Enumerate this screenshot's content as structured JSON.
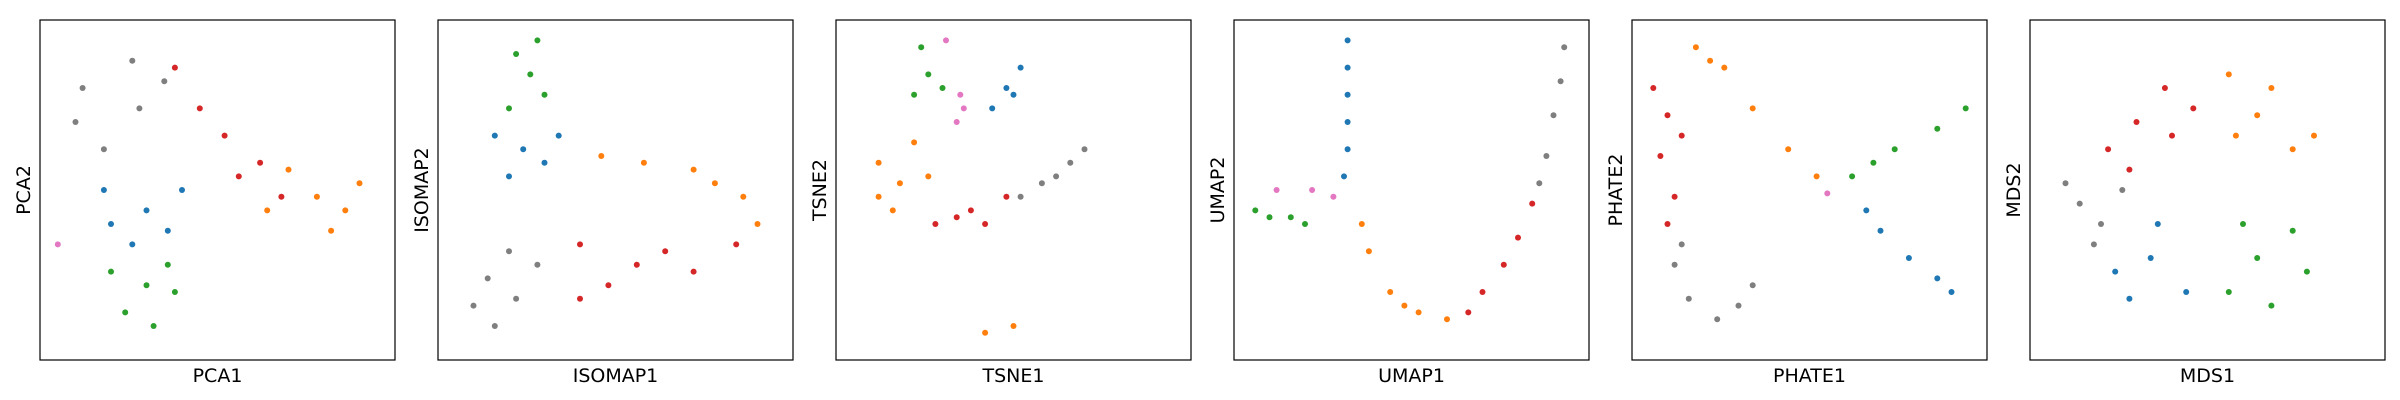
{
  "chart_data": [
    {
      "type": "scatter",
      "xlabel": "PCA1",
      "ylabel": "PCA2",
      "xlim": [
        0,
        100
      ],
      "ylim": [
        0,
        100
      ],
      "grid": false,
      "series": [
        {
          "color": "#7f7f7f",
          "points": [
            [
              28,
              74
            ],
            [
              12,
              80
            ],
            [
              18,
              62
            ],
            [
              35,
              82
            ],
            [
              26,
              88
            ],
            [
              10,
              70
            ]
          ]
        },
        {
          "color": "#d62728",
          "points": [
            [
              52,
              66
            ],
            [
              45,
              74
            ],
            [
              62,
              58
            ],
            [
              68,
              48
            ],
            [
              38,
              86
            ],
            [
              56,
              54
            ]
          ]
        },
        {
          "color": "#ff7f0e",
          "points": [
            [
              78,
              48
            ],
            [
              70,
              56
            ],
            [
              86,
              44
            ],
            [
              90,
              52
            ],
            [
              64,
              44
            ],
            [
              82,
              38
            ]
          ]
        },
        {
          "color": "#1f77b4",
          "points": [
            [
              30,
              44
            ],
            [
              20,
              40
            ],
            [
              40,
              50
            ],
            [
              26,
              34
            ],
            [
              36,
              38
            ],
            [
              18,
              50
            ]
          ]
        },
        {
          "color": "#2ca02c",
          "points": [
            [
              30,
              22
            ],
            [
              24,
              14
            ],
            [
              36,
              28
            ],
            [
              20,
              26
            ],
            [
              32,
              10
            ],
            [
              38,
              20
            ]
          ]
        },
        {
          "color": "#e377c2",
          "points": [
            [
              5,
              34
            ]
          ]
        }
      ]
    },
    {
      "type": "scatter",
      "xlabel": "ISOMAP1",
      "ylabel": "ISOMAP2",
      "xlim": [
        0,
        100
      ],
      "ylim": [
        0,
        100
      ],
      "grid": false,
      "series": [
        {
          "color": "#2ca02c",
          "points": [
            [
              26,
              84
            ],
            [
              22,
              90
            ],
            [
              30,
              78
            ],
            [
              20,
              74
            ],
            [
              28,
              94
            ]
          ]
        },
        {
          "color": "#1f77b4",
          "points": [
            [
              24,
              62
            ],
            [
              16,
              66
            ],
            [
              30,
              58
            ],
            [
              20,
              54
            ],
            [
              34,
              66
            ]
          ]
        },
        {
          "color": "#ff7f0e",
          "points": [
            [
              58,
              58
            ],
            [
              72,
              56
            ],
            [
              86,
              48
            ],
            [
              90,
              40
            ],
            [
              46,
              60
            ],
            [
              78,
              52
            ]
          ]
        },
        {
          "color": "#d62728",
          "points": [
            [
              40,
              34
            ],
            [
              56,
              28
            ],
            [
              72,
              26
            ],
            [
              84,
              34
            ],
            [
              48,
              22
            ],
            [
              64,
              32
            ],
            [
              40,
              18
            ]
          ]
        },
        {
          "color": "#7f7f7f",
          "points": [
            [
              14,
              24
            ],
            [
              22,
              18
            ],
            [
              28,
              28
            ],
            [
              10,
              16
            ],
            [
              20,
              32
            ],
            [
              16,
              10
            ]
          ]
        }
      ]
    },
    {
      "type": "scatter",
      "xlabel": "TSNE1",
      "ylabel": "TSNE2",
      "xlim": [
        0,
        100
      ],
      "ylim": [
        0,
        100
      ],
      "grid": false,
      "series": [
        {
          "color": "#2ca02c",
          "points": [
            [
              26,
              84
            ],
            [
              24,
              92
            ],
            [
              30,
              80
            ],
            [
              22,
              78
            ]
          ]
        },
        {
          "color": "#1f77b4",
          "points": [
            [
              48,
              80
            ],
            [
              44,
              74
            ],
            [
              52,
              86
            ],
            [
              50,
              78
            ]
          ]
        },
        {
          "color": "#e377c2",
          "points": [
            [
              35,
              78
            ],
            [
              34,
              70
            ],
            [
              31,
              94
            ],
            [
              36,
              74
            ]
          ]
        },
        {
          "color": "#ff7f0e",
          "points": [
            [
              18,
              52
            ],
            [
              12,
              58
            ],
            [
              22,
              64
            ],
            [
              16,
              44
            ],
            [
              26,
              54
            ],
            [
              12,
              48
            ]
          ]
        },
        {
          "color": "#d62728",
          "points": [
            [
              34,
              42
            ],
            [
              42,
              40
            ],
            [
              28,
              40
            ],
            [
              48,
              48
            ],
            [
              38,
              44
            ]
          ]
        },
        {
          "color": "#7f7f7f",
          "points": [
            [
              58,
              52
            ],
            [
              66,
              58
            ],
            [
              52,
              48
            ],
            [
              70,
              62
            ],
            [
              62,
              54
            ]
          ]
        },
        {
          "color": "#ff7f0e",
          "points": [
            [
              42,
              8
            ],
            [
              50,
              10
            ]
          ]
        }
      ]
    },
    {
      "type": "scatter",
      "xlabel": "UMAP1",
      "ylabel": "UMAP2",
      "xlim": [
        0,
        100
      ],
      "ylim": [
        0,
        100
      ],
      "grid": false,
      "series": [
        {
          "color": "#1f77b4",
          "points": [
            [
              32,
              94
            ],
            [
              32,
              86
            ],
            [
              32,
              78
            ],
            [
              32,
              70
            ],
            [
              32,
              62
            ],
            [
              31,
              54
            ]
          ]
        },
        {
          "color": "#2ca02c",
          "points": [
            [
              10,
              42
            ],
            [
              16,
              42
            ],
            [
              6,
              44
            ],
            [
              20,
              40
            ]
          ]
        },
        {
          "color": "#e377c2",
          "points": [
            [
              12,
              50
            ],
            [
              22,
              50
            ],
            [
              28,
              48
            ]
          ]
        },
        {
          "color": "#ff7f0e",
          "points": [
            [
              38,
              32
            ],
            [
              44,
              20
            ],
            [
              52,
              14
            ],
            [
              60,
              12
            ],
            [
              36,
              40
            ],
            [
              48,
              16
            ]
          ]
        },
        {
          "color": "#d62728",
          "points": [
            [
              70,
              20
            ],
            [
              76,
              28
            ],
            [
              80,
              36
            ],
            [
              84,
              46
            ],
            [
              66,
              14
            ]
          ]
        },
        {
          "color": "#7f7f7f",
          "points": [
            [
              88,
              60
            ],
            [
              90,
              72
            ],
            [
              92,
              82
            ],
            [
              93,
              92
            ],
            [
              86,
              52
            ]
          ]
        }
      ]
    },
    {
      "type": "scatter",
      "xlabel": "PHATE1",
      "ylabel": "PHATE2",
      "xlim": [
        0,
        100
      ],
      "ylim": [
        0,
        100
      ],
      "grid": false,
      "series": [
        {
          "color": "#ff7f0e",
          "points": [
            [
              18,
              92
            ],
            [
              26,
              86
            ],
            [
              34,
              74
            ],
            [
              44,
              62
            ],
            [
              52,
              54
            ],
            [
              22,
              88
            ]
          ]
        },
        {
          "color": "#d62728",
          "points": [
            [
              10,
              72
            ],
            [
              8,
              60
            ],
            [
              12,
              48
            ],
            [
              10,
              40
            ],
            [
              6,
              80
            ],
            [
              14,
              66
            ]
          ]
        },
        {
          "color": "#7f7f7f",
          "points": [
            [
              12,
              28
            ],
            [
              16,
              18
            ],
            [
              24,
              12
            ],
            [
              30,
              16
            ],
            [
              14,
              34
            ],
            [
              34,
              22
            ]
          ]
        },
        {
          "color": "#2ca02c",
          "points": [
            [
              62,
              54
            ],
            [
              74,
              62
            ],
            [
              86,
              68
            ],
            [
              94,
              74
            ],
            [
              68,
              58
            ]
          ]
        },
        {
          "color": "#1f77b4",
          "points": [
            [
              70,
              38
            ],
            [
              78,
              30
            ],
            [
              86,
              24
            ],
            [
              90,
              20
            ],
            [
              66,
              44
            ]
          ]
        },
        {
          "color": "#e377c2",
          "points": [
            [
              55,
              49
            ]
          ]
        }
      ]
    },
    {
      "type": "scatter",
      "xlabel": "MDS1",
      "ylabel": "MDS2",
      "xlim": [
        0,
        100
      ],
      "ylim": [
        0,
        100
      ],
      "grid": false,
      "series": [
        {
          "color": "#d62728",
          "points": [
            [
              30,
              70
            ],
            [
              22,
              62
            ],
            [
              38,
              80
            ],
            [
              40,
              66
            ],
            [
              28,
              56
            ],
            [
              46,
              74
            ]
          ]
        },
        {
          "color": "#ff7f0e",
          "points": [
            [
              64,
              72
            ],
            [
              74,
              62
            ],
            [
              56,
              84
            ],
            [
              68,
              80
            ],
            [
              80,
              66
            ],
            [
              58,
              66
            ]
          ]
        },
        {
          "color": "#7f7f7f",
          "points": [
            [
              14,
              46
            ],
            [
              20,
              40
            ],
            [
              10,
              52
            ],
            [
              26,
              50
            ],
            [
              18,
              34
            ]
          ]
        },
        {
          "color": "#1f77b4",
          "points": [
            [
              34,
              30
            ],
            [
              24,
              26
            ],
            [
              44,
              20
            ],
            [
              36,
              40
            ],
            [
              28,
              18
            ]
          ]
        },
        {
          "color": "#2ca02c",
          "points": [
            [
              64,
              30
            ],
            [
              74,
              38
            ],
            [
              56,
              20
            ],
            [
              78,
              26
            ],
            [
              60,
              40
            ],
            [
              68,
              16
            ]
          ]
        }
      ]
    }
  ]
}
